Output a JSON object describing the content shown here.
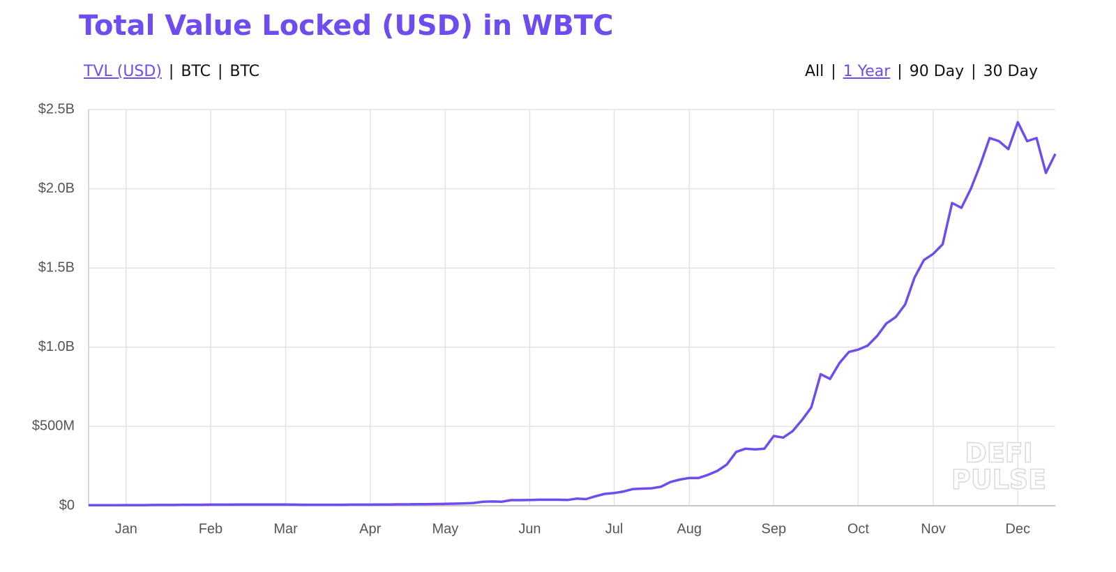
{
  "chart_data": {
    "type": "line",
    "title": "Total Value Locked (USD) in WBTC",
    "metric_tabs": [
      "TVL (USD)",
      "BTC",
      "BTC"
    ],
    "selected_metric": 0,
    "range_tabs": [
      "All",
      "1 Year",
      "90 Day",
      "30 Day"
    ],
    "selected_range": 1,
    "separator": "|",
    "watermark": [
      "DEFI",
      "PULSE"
    ],
    "color": "#6e4cf0",
    "grid": true,
    "categories": [
      null,
      null,
      null,
      null,
      "Jan",
      null,
      null,
      null,
      null,
      null,
      null,
      null,
      null,
      "Feb",
      null,
      null,
      null,
      null,
      null,
      null,
      null,
      "Mar",
      null,
      null,
      null,
      null,
      null,
      null,
      null,
      null,
      "Apr",
      null,
      null,
      null,
      null,
      null,
      null,
      null,
      "May",
      null,
      null,
      null,
      null,
      null,
      null,
      null,
      null,
      "Jun",
      null,
      null,
      null,
      null,
      null,
      null,
      null,
      null,
      "Jul",
      null,
      null,
      null,
      null,
      null,
      null,
      null,
      "Aug",
      null,
      null,
      null,
      null,
      null,
      null,
      null,
      null,
      "Sep",
      null,
      null,
      null,
      null,
      null,
      null,
      null,
      null,
      "Oct",
      null,
      null,
      null,
      null,
      null,
      null,
      null,
      "Nov",
      null,
      null,
      null,
      null,
      null,
      null,
      null,
      null,
      "Dec",
      null,
      null,
      null,
      null
    ],
    "values": [
      3000000.0,
      3000000.0,
      3000000.0,
      3000000.0,
      4000000.0,
      4000000.0,
      4000000.0,
      5000000.0,
      5000000.0,
      5000000.0,
      6000000.0,
      6000000.0,
      6000000.0,
      7000000.0,
      7000000.0,
      7000000.0,
      8000000.0,
      8000000.0,
      8000000.0,
      8000000.0,
      8000000.0,
      8000000.0,
      7000000.0,
      6000000.0,
      6000000.0,
      6000000.0,
      6000000.0,
      6000000.0,
      7000000.0,
      7000000.0,
      7000000.0,
      8000000.0,
      8000000.0,
      9000000.0,
      9000000.0,
      10000000.0,
      10000000.0,
      11000000.0,
      12000000.0,
      13000000.0,
      15000000.0,
      17000000.0,
      25000000.0,
      27000000.0,
      25000000.0,
      35000000.0,
      35000000.0,
      36000000.0,
      38000000.0,
      38000000.0,
      38000000.0,
      36000000.0,
      45000000.0,
      42000000.0,
      60000000.0,
      75000000.0,
      80000000.0,
      90000000.0,
      105000000.0,
      108000000.0,
      110000000.0,
      120000000.0,
      150000000.0,
      165000000.0,
      175000000.0,
      175000000.0,
      195000000.0,
      220000000.0,
      260000000.0,
      340000000.0,
      360000000.0,
      355000000.0,
      360000000.0,
      440000000.0,
      430000000.0,
      470000000.0,
      540000000.0,
      620000000.0,
      830000000.0,
      800000000.0,
      900000000.0,
      970000000.0,
      985000000.0,
      1010000000.0,
      1070000000.0,
      1150000000.0,
      1190000000.0,
      1270000000.0,
      1440000000.0,
      1550000000.0,
      1590000000.0,
      1650000000.0,
      1910000000.0,
      1880000000.0,
      2000000000.0,
      2150000000.0,
      2320000000.0,
      2300000000.0,
      2250000000.0,
      2420000000.0,
      2300000000.0,
      2320000000.0,
      2100000000.0,
      2220000000.0
    ],
    "ylim": [
      0,
      2500000000
    ],
    "yticks": [
      {
        "value": 0,
        "label": "$0"
      },
      {
        "value": 500000000,
        "label": "$500M"
      },
      {
        "value": 1000000000,
        "label": "$1.0B"
      },
      {
        "value": 1500000000,
        "label": "$1.5B"
      },
      {
        "value": 2000000000,
        "label": "$2.0B"
      },
      {
        "value": 2500000000,
        "label": "$2.5B"
      }
    ]
  }
}
